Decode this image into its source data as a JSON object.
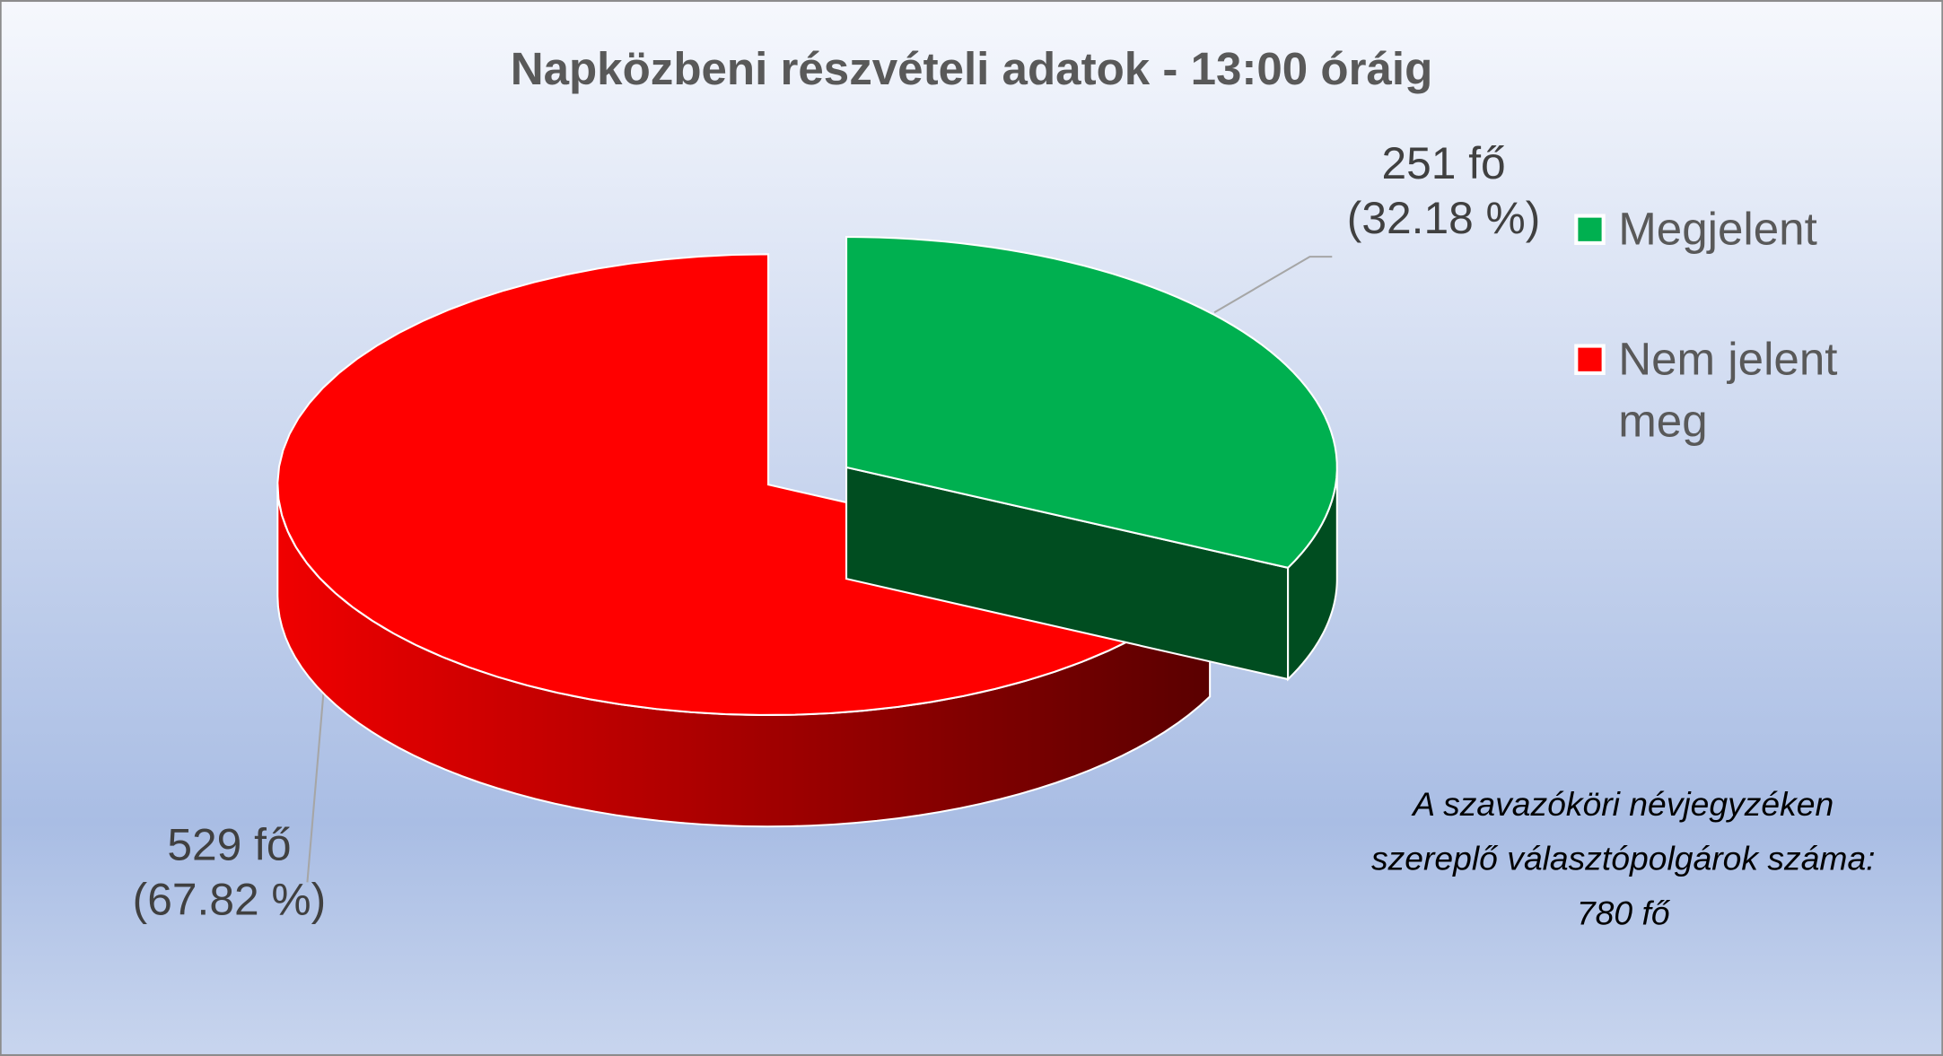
{
  "chart_data": {
    "type": "pie",
    "title": "Napközbeni részvételi adatok - 13:00 óráig",
    "categories": [
      "Megjelent",
      "Nem jelent meg"
    ],
    "values": [
      251,
      529
    ],
    "value_labels": [
      "251 fő (32.18 %)",
      "529 fő (67.82 %)"
    ],
    "colors": [
      "#00b050",
      "#ff0000"
    ],
    "legend": "right",
    "annotation": "A szavazóköri névjegyzéken szereplő választópolgárok száma: 780 fő"
  }
}
